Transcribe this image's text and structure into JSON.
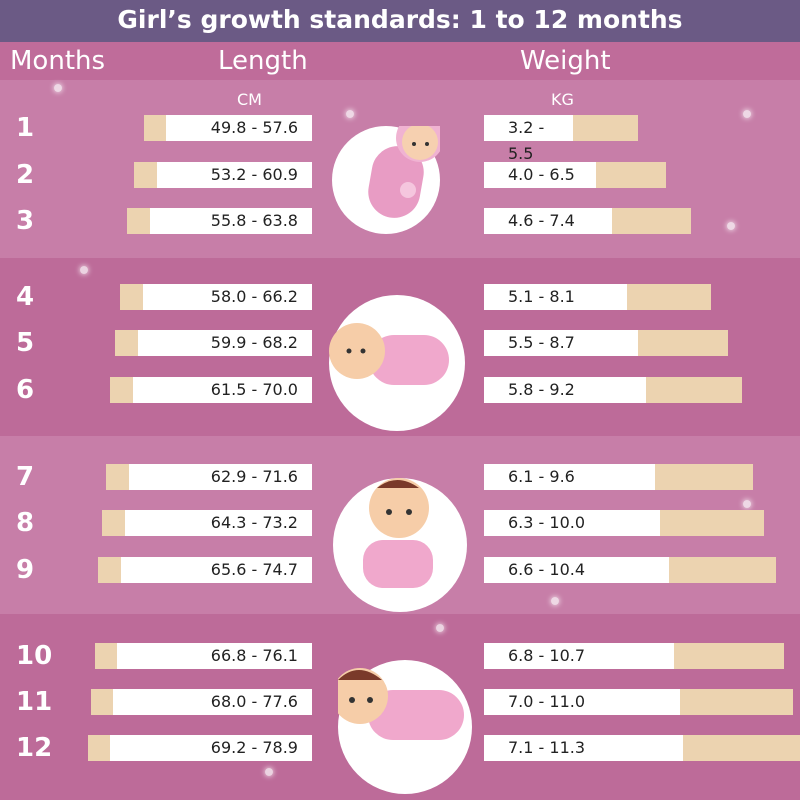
{
  "title": "Girl’s growth standards: 1 to 12 months",
  "headers": {
    "months": "Months",
    "length": "Length",
    "weight": "Weight",
    "length_unit": "CM",
    "weight_unit": "KG"
  },
  "colors": {
    "title_bar": "#6b5a85",
    "band_light": "#c77ea8",
    "band_dark": "#bd6b99",
    "bar_beige": "#ecd3b0",
    "bar_white": "#ffffff"
  },
  "icons": [
    "baby-swaddled-icon",
    "baby-lying-icon",
    "baby-sitting-icon",
    "baby-crawling-icon"
  ],
  "chart_data": {
    "type": "bar",
    "categories": [
      "1",
      "2",
      "3",
      "4",
      "5",
      "6",
      "7",
      "8",
      "9",
      "10",
      "11",
      "12"
    ],
    "length_cm": [
      [
        "49.8",
        "57.6"
      ],
      [
        "53.2",
        "60.9"
      ],
      [
        "55.8",
        "63.8"
      ],
      [
        "58.0",
        "66.2"
      ],
      [
        "59.9",
        "68.2"
      ],
      [
        "61.5",
        "70.0"
      ],
      [
        "62.9",
        "71.6"
      ],
      [
        "64.3",
        "73.2"
      ],
      [
        "65.6",
        "74.7"
      ],
      [
        "66.8",
        "76.1"
      ],
      [
        "68.0",
        "77.6"
      ],
      [
        "69.2",
        "78.9"
      ]
    ],
    "weight_kg": [
      [
        "3.2",
        "5.5"
      ],
      [
        "4.0",
        "6.5"
      ],
      [
        "4.6",
        "7.4"
      ],
      [
        "5.1",
        "8.1"
      ],
      [
        "5.5",
        "8.7"
      ],
      [
        "5.8",
        "9.2"
      ],
      [
        "6.1",
        "9.6"
      ],
      [
        "6.3",
        "10.0"
      ],
      [
        "6.6",
        "10.4"
      ],
      [
        "6.8",
        "10.7"
      ],
      [
        "7.0",
        "11.0"
      ],
      [
        "7.1",
        "11.3"
      ]
    ]
  }
}
